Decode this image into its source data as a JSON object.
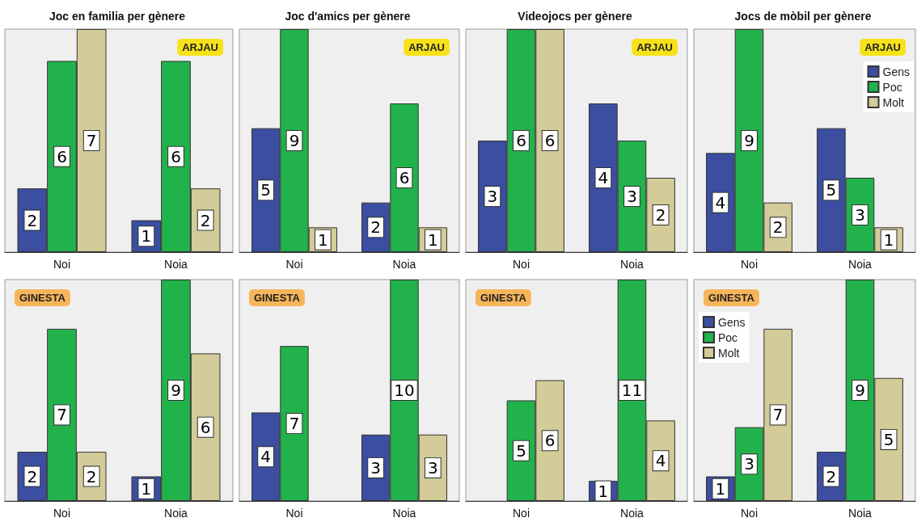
{
  "chart_data": [
    {
      "type": "bar",
      "title": "Joc en familia per gènere",
      "categories": [
        "Noi",
        "Noia"
      ],
      "annotations": [
        "ARJAU"
      ],
      "data_labels": true,
      "series": [
        {
          "color": "#3b4ea0",
          "values": [
            2,
            1
          ]
        },
        {
          "color": "#22b24c",
          "values": [
            6,
            6
          ]
        },
        {
          "color": "#d3cb98",
          "values": [
            7,
            2
          ]
        }
      ]
    },
    {
      "type": "bar",
      "title": "Joc d'amics per gènere",
      "categories": [
        "Noi",
        "Noia"
      ],
      "annotations": [
        "ARJAU"
      ],
      "data_labels": true,
      "series": [
        {
          "color": "#3b4ea0",
          "values": [
            5,
            2
          ]
        },
        {
          "color": "#22b24c",
          "values": [
            9,
            6
          ]
        },
        {
          "color": "#d3cb98",
          "values": [
            1,
            1
          ]
        }
      ]
    },
    {
      "type": "bar",
      "title": "Videojocs per gènere",
      "categories": [
        "Noi",
        "Noia"
      ],
      "annotations": [
        "ARJAU"
      ],
      "data_labels": true,
      "series": [
        {
          "color": "#3b4ea0",
          "values": [
            3,
            4
          ]
        },
        {
          "color": "#22b24c",
          "values": [
            6,
            3
          ]
        },
        {
          "color": "#d3cb98",
          "values": [
            6,
            2
          ]
        }
      ]
    },
    {
      "type": "bar",
      "title": "Jocs de mòbil per gènere",
      "categories": [
        "Noi",
        "Noia"
      ],
      "annotations": [
        "ARJAU"
      ],
      "data_labels": true,
      "legend": "top right",
      "series": [
        {
          "name": "Gens",
          "color": "#3b4ea0",
          "values": [
            4,
            5
          ]
        },
        {
          "name": "Poc",
          "color": "#22b24c",
          "values": [
            9,
            3
          ]
        },
        {
          "name": "Molt",
          "color": "#d3cb98",
          "values": [
            2,
            1
          ]
        }
      ]
    },
    {
      "type": "bar",
      "categories": [
        "Noi",
        "Noia"
      ],
      "annotations": [
        "GINESTA"
      ],
      "data_labels": true,
      "series": [
        {
          "color": "#3b4ea0",
          "values": [
            2,
            1
          ]
        },
        {
          "color": "#22b24c",
          "values": [
            7,
            9
          ]
        },
        {
          "color": "#d3cb98",
          "values": [
            2,
            6
          ]
        }
      ]
    },
    {
      "type": "bar",
      "categories": [
        "Noi",
        "Noia"
      ],
      "annotations": [
        "GINESTA"
      ],
      "data_labels": true,
      "series": [
        {
          "color": "#3b4ea0",
          "values": [
            4,
            3
          ]
        },
        {
          "color": "#22b24c",
          "values": [
            7,
            10
          ]
        },
        {
          "color": "#d3cb98",
          "values": [
            null,
            3
          ]
        }
      ]
    },
    {
      "type": "bar",
      "categories": [
        "Noi",
        "Noia"
      ],
      "annotations": [
        "GINESTA"
      ],
      "data_labels": true,
      "series": [
        {
          "color": "#3b4ea0",
          "values": [
            null,
            1
          ]
        },
        {
          "color": "#22b24c",
          "values": [
            5,
            11
          ]
        },
        {
          "color": "#d3cb98",
          "values": [
            6,
            4
          ]
        }
      ]
    },
    {
      "type": "bar",
      "categories": [
        "Noi",
        "Noia"
      ],
      "annotations": [
        "GINESTA"
      ],
      "data_labels": true,
      "legend": "top left",
      "series": [
        {
          "name": "Gens",
          "color": "#3b4ea0",
          "values": [
            1,
            2
          ]
        },
        {
          "name": "Poc",
          "color": "#22b24c",
          "values": [
            3,
            9
          ]
        },
        {
          "name": "Molt",
          "color": "#d3cb98",
          "values": [
            7,
            5
          ]
        }
      ]
    }
  ]
}
